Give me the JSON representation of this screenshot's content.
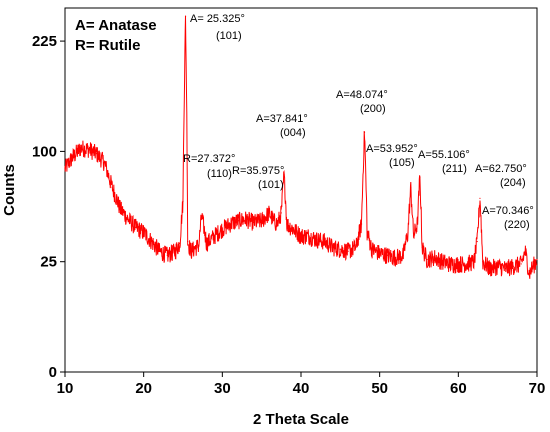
{
  "chart_data": {
    "type": "line",
    "xlabel": "2 Theta Scale",
    "ylabel": "Counts",
    "xlim": [
      10,
      70
    ],
    "y_ticks": [
      0,
      25,
      100,
      225
    ],
    "x_ticks": [
      10,
      20,
      30,
      40,
      50,
      60,
      70
    ],
    "y_scale": "sqrt",
    "grid": false,
    "line_color": "#ff0000",
    "legend": [
      "A= Anatase",
      "R= Rutile"
    ],
    "legend_position": "top-left",
    "series": [
      {
        "x": [
          10,
          11,
          12,
          13,
          14,
          15,
          16,
          17,
          18,
          19,
          20,
          21,
          22,
          23,
          24,
          24.6,
          25.0,
          25.325,
          25.6,
          26,
          27,
          27.372,
          28,
          29,
          30,
          31,
          32,
          33,
          34,
          35,
          35.975,
          36.5,
          37,
          37.5,
          37.841,
          38.2,
          39,
          40,
          41,
          42,
          43,
          44,
          45,
          46,
          47,
          47.7,
          48.074,
          48.4,
          49,
          50,
          51,
          52,
          53,
          53.6,
          53.952,
          54.3,
          54.8,
          55.106,
          55.4,
          56,
          57,
          58,
          59,
          60,
          61,
          62,
          62.4,
          62.75,
          63.1,
          64,
          65,
          66,
          67,
          68,
          68.5,
          69,
          70
        ],
        "values": [
          85,
          95,
          103,
          102,
          98,
          90,
          70,
          55,
          48,
          43,
          40,
          35,
          30,
          28,
          30,
          34,
          60,
          260,
          35,
          30,
          33,
          50,
          34,
          38,
          42,
          45,
          47,
          48,
          46,
          47,
          52,
          47,
          45,
          52,
          80,
          45,
          42,
          38,
          38,
          36,
          35,
          32,
          31,
          30,
          32,
          45,
          118,
          40,
          31,
          29,
          28,
          27,
          28,
          40,
          70,
          38,
          45,
          78,
          32,
          26,
          27,
          25,
          24,
          24,
          24,
          25,
          35,
          62,
          25,
          22,
          23,
          22,
          23,
          24,
          30,
          20,
          26
        ]
      }
    ],
    "annotations": [
      {
        "label": "A= 25.325°",
        "hkl": "(101)",
        "x": 25.325
      },
      {
        "label": "R=27.372°",
        "hkl": "(110)",
        "x": 27.372
      },
      {
        "label": "R=35.975°",
        "hkl": "(101)",
        "x": 35.975
      },
      {
        "label": "A=37.841°",
        "hkl": "(004)",
        "x": 37.841
      },
      {
        "label": "A=48.074°",
        "hkl": "(200)",
        "x": 48.074
      },
      {
        "label": "A=53.952°",
        "hkl": "(105)",
        "x": 53.952
      },
      {
        "label": "A=55.106°",
        "hkl": "(211)",
        "x": 55.106
      },
      {
        "label": "A=62.750°",
        "hkl": "(204)",
        "x": 62.75
      },
      {
        "label": "A=70.346°",
        "hkl": "(220)",
        "x": 70.346
      }
    ]
  }
}
